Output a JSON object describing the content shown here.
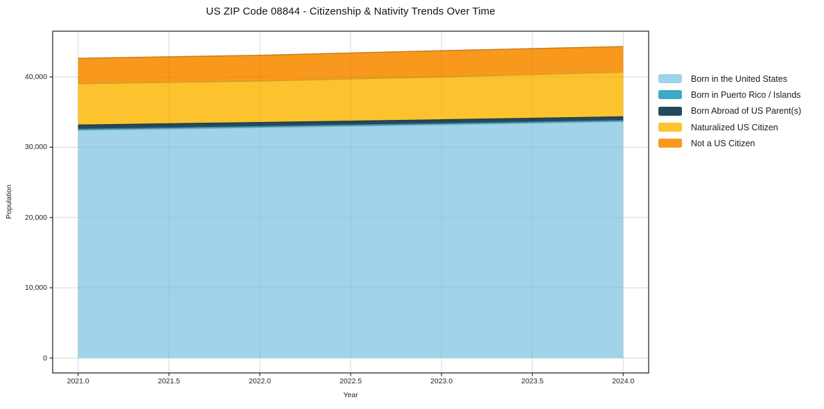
{
  "chart_data": {
    "type": "area",
    "stacked": true,
    "title": "US ZIP Code 08844 - Citizenship & Nativity Trends Over Time",
    "xlabel": "Year",
    "ylabel": "Population",
    "x": [
      2021,
      2022,
      2023,
      2024
    ],
    "series": [
      {
        "name": "Born in the United States",
        "color": "#a1d3ea",
        "values": [
          32400,
          32800,
          33200,
          33650
        ]
      },
      {
        "name": "Born in Puerto Rico / Islands",
        "color": "#3cabc8",
        "values": [
          150,
          150,
          150,
          150
        ]
      },
      {
        "name": "Born Abroad of US Parent(s)",
        "color": "#234a5c",
        "values": [
          600,
          570,
          550,
          530
        ]
      },
      {
        "name": "Naturalized US Citizen",
        "color": "#fdc32f",
        "values": [
          5880,
          5900,
          6100,
          6350
        ]
      },
      {
        "name": "Not a US Citizen",
        "color": "#f8991d",
        "values": [
          3620,
          3660,
          3740,
          3650
        ]
      }
    ],
    "x_ticks": {
      "values": [
        2021.0,
        2021.5,
        2022.0,
        2022.5,
        2023.0,
        2023.5,
        2024.0
      ],
      "labels": [
        "2021.0",
        "2021.5",
        "2022.0",
        "2022.5",
        "2023.0",
        "2023.5",
        "2024.0"
      ]
    },
    "y_ticks": {
      "values": [
        0,
        10000,
        20000,
        30000,
        40000
      ],
      "labels": [
        "0",
        "10,000",
        "20,000",
        "30,000",
        "40,000"
      ]
    },
    "xlim": [
      2020.86,
      2024.14
    ],
    "ylim": [
      -2120,
      46510
    ],
    "grid": true,
    "grid_color": "#e8e8e8",
    "axis_color": "#2a2a2a",
    "legend_position": "right-outside"
  }
}
